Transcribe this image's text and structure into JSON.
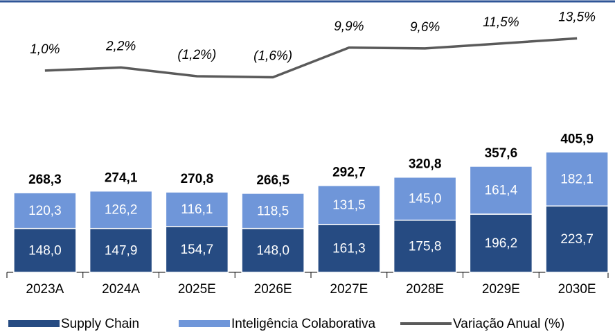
{
  "chart_data": {
    "type": "bar",
    "categories": [
      "2023A",
      "2024A",
      "2025E",
      "2026E",
      "2027E",
      "2028E",
      "2029E",
      "2030E"
    ],
    "stacked": true,
    "ylim": [
      0,
      500
    ],
    "y2lim": [
      -20,
      23
    ],
    "series": [
      {
        "name": "Supply Chain",
        "type": "bar",
        "color": "#264b82",
        "values": [
          148.0,
          147.9,
          154.7,
          148.0,
          161.3,
          175.8,
          196.2,
          223.7
        ],
        "value_labels": [
          "148,0",
          "147,9",
          "154,7",
          "148,0",
          "161,3",
          "175,8",
          "196,2",
          "223,7"
        ]
      },
      {
        "name": "Inteligência Colaborativa",
        "type": "bar",
        "color": "#6f96d9",
        "values": [
          120.3,
          126.2,
          116.1,
          118.5,
          131.5,
          145.0,
          161.4,
          182.1
        ],
        "value_labels": [
          "120,3",
          "126,2",
          "116,1",
          "118,5",
          "131,5",
          "145,0",
          "161,4",
          "182,1"
        ]
      },
      {
        "name": "Variação Anual (%)",
        "type": "line",
        "axis": "y2",
        "color": "#5a5a5a",
        "values": [
          1.0,
          2.2,
          -1.2,
          -1.6,
          9.9,
          9.6,
          11.5,
          13.5
        ],
        "value_labels": [
          "1,0%",
          "2,2%",
          "(1,2%)",
          "(1,6%)",
          "9,9%",
          "9,6%",
          "11,5%",
          "13,5%"
        ]
      }
    ],
    "totals": [
      268.3,
      274.1,
      270.8,
      266.5,
      292.7,
      320.8,
      357.6,
      405.9
    ],
    "total_labels": [
      "268,3",
      "274,1",
      "270,8",
      "266,5",
      "292,7",
      "320,8",
      "357,6",
      "405,9"
    ],
    "legend": "bottom"
  }
}
